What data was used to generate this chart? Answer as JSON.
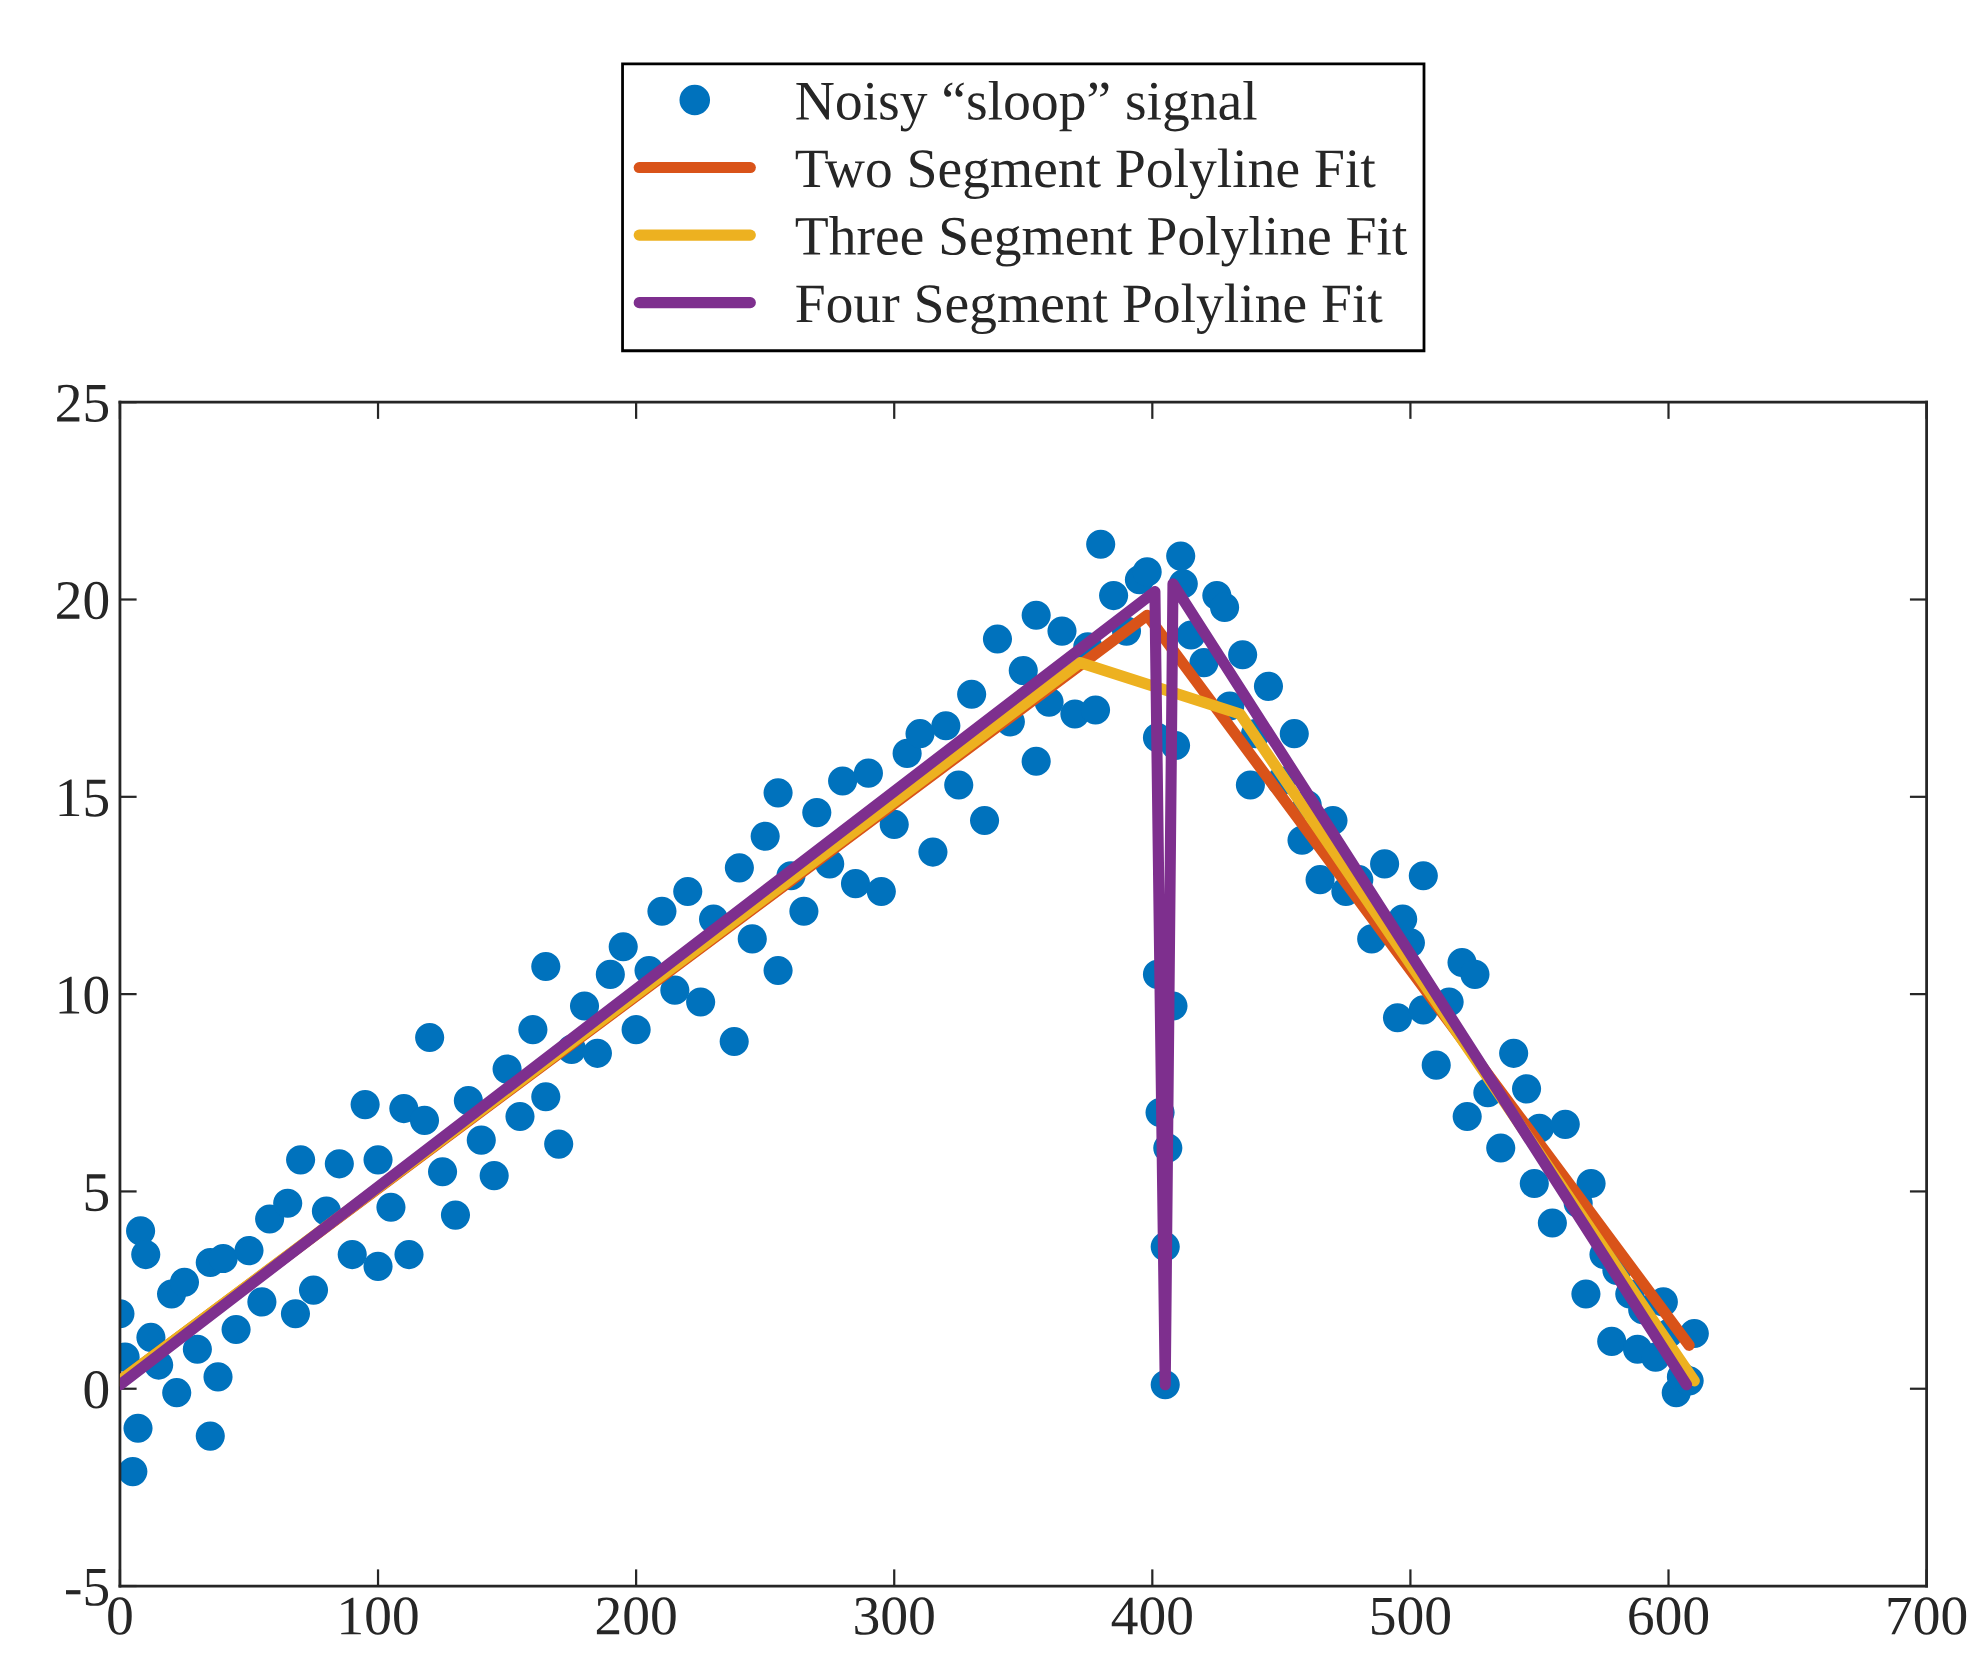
{
  "chart_data": {
    "type": "scatter",
    "xlim": [
      0,
      700
    ],
    "ylim": [
      -5,
      25
    ],
    "xticks": [
      0,
      100,
      200,
      300,
      400,
      500,
      600,
      700
    ],
    "yticks": [
      -5,
      0,
      5,
      10,
      15,
      20,
      25
    ],
    "grid": false,
    "legend": "top",
    "series": [
      {
        "name": "Noisy “sloop” signal",
        "marker": "circle",
        "color": "#0072bd",
        "x": [
          0,
          2,
          5,
          7,
          8,
          10,
          12,
          15,
          20,
          22,
          25,
          30,
          35,
          35,
          38,
          40,
          45,
          50,
          55,
          58,
          65,
          68,
          70,
          75,
          80,
          85,
          90,
          95,
          100,
          100,
          105,
          110,
          112,
          118,
          120,
          125,
          130,
          135,
          140,
          145,
          150,
          155,
          160,
          165,
          165,
          170,
          175,
          180,
          185,
          190,
          195,
          200,
          205,
          210,
          215,
          220,
          225,
          230,
          238,
          240,
          245,
          250,
          255,
          255,
          260,
          265,
          270,
          275,
          280,
          285,
          290,
          295,
          300,
          305,
          310,
          315,
          320,
          325,
          330,
          335,
          340,
          345,
          350,
          355,
          355,
          360,
          365,
          370,
          375,
          378,
          380,
          385,
          390,
          395,
          398,
          402,
          402,
          403,
          405,
          405,
          406,
          408,
          409,
          411,
          412,
          415,
          420,
          425,
          428,
          430,
          435,
          438,
          440,
          445,
          450,
          455,
          458,
          460,
          465,
          470,
          475,
          480,
          485,
          490,
          495,
          497,
          500,
          505,
          505,
          510,
          515,
          520,
          522,
          525,
          530,
          535,
          540,
          545,
          548,
          550,
          555,
          560,
          565,
          568,
          570,
          575,
          578,
          580,
          585,
          588,
          590,
          595,
          598,
          600,
          603,
          605,
          610,
          608
        ],
        "values": [
          1.9,
          0.8,
          -2.1,
          -1,
          4,
          3.4,
          1.3,
          0.6,
          2.4,
          -0.1,
          2.7,
          1,
          -1.2,
          3.2,
          0.3,
          3.3,
          1.5,
          3.5,
          2.2,
          4.3,
          4.7,
          1.9,
          5.8,
          2.5,
          4.5,
          5.7,
          3.4,
          7.2,
          3.1,
          5.8,
          4.6,
          7.1,
          3.4,
          6.8,
          8.9,
          5.5,
          4.4,
          7.3,
          6.3,
          5.4,
          8.1,
          6.9,
          9.1,
          10.7,
          7.4,
          6.2,
          8.6,
          9.7,
          8.5,
          10.5,
          11.2,
          9.1,
          10.6,
          12.1,
          10.1,
          12.6,
          9.8,
          11.9,
          8.8,
          13.2,
          11.4,
          14,
          15.1,
          10.6,
          13,
          12.1,
          14.6,
          13.3,
          15.4,
          12.8,
          15.6,
          12.6,
          14.3,
          16.1,
          16.6,
          13.6,
          16.8,
          15.3,
          17.6,
          14.4,
          19,
          16.9,
          18.2,
          15.9,
          19.6,
          17.4,
          19.2,
          17.1,
          18.8,
          17.2,
          21.4,
          20.1,
          19.2,
          20.5,
          20.7,
          16.5,
          10.5,
          7,
          3.6,
          0.1,
          6.1,
          9.7,
          16.3,
          21.1,
          20.4,
          19.1,
          18.4,
          20.1,
          19.8,
          17.3,
          18.6,
          15.3,
          16.6,
          17.8,
          15.4,
          16.6,
          13.9,
          14.8,
          12.9,
          14.4,
          12.6,
          12.9,
          11.4,
          13.3,
          9.4,
          11.9,
          11.3,
          13,
          9.6,
          8.2,
          9.8,
          10.8,
          6.9,
          10.5,
          7.5,
          6.1,
          8.5,
          7.6,
          5.2,
          6.6,
          4.2,
          6.7,
          4.7,
          2.4,
          5.2,
          3.4,
          1.2,
          3,
          2.4,
          1,
          2,
          0.8,
          2.2,
          1.4,
          -0.1,
          0.3,
          1.4,
          0.2
        ]
      },
      {
        "name": "Two Segment Polyline Fit",
        "type": "line",
        "color": "#d95319",
        "x": [
          0,
          398,
          608
        ],
        "values": [
          0.2,
          19.6,
          1.1
        ]
      },
      {
        "name": "Three Segment Polyline Fit",
        "type": "line",
        "color": "#edb120",
        "x": [
          0,
          372,
          434,
          610
        ],
        "values": [
          0.2,
          18.4,
          17.1,
          0.2
        ]
      },
      {
        "name": "Four Segment Polyline Fit",
        "type": "line",
        "color": "#7e2f8e",
        "x": [
          0,
          401,
          405,
          408,
          607
        ],
        "values": [
          0.1,
          20.2,
          0.1,
          20.4,
          0.1
        ]
      }
    ]
  }
}
